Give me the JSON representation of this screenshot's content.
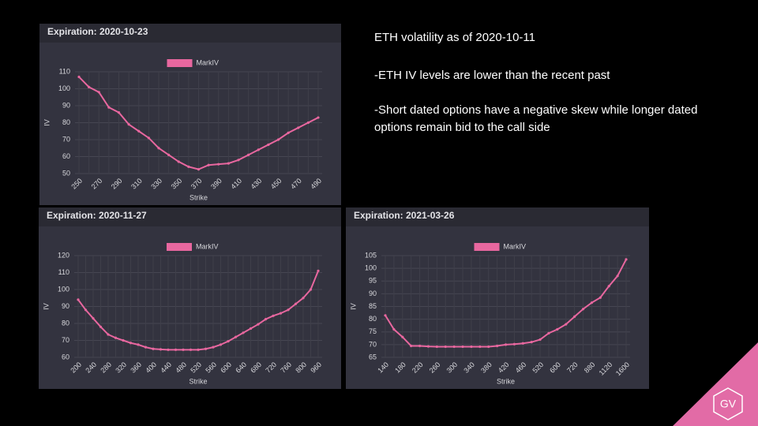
{
  "slide": {
    "heading": "ETH volatility as of 2020-10-11",
    "bullets": [
      "-ETH IV levels are lower than the recent past",
      "-Short dated options have a negative skew while longer dated",
      "options remain bid to the call side"
    ],
    "logo": "GV"
  },
  "chart_data": [
    {
      "type": "line",
      "title": "Expiration: 2020-10-23",
      "x_label": "Strike",
      "y_label": "IV",
      "categories": [
        250,
        null,
        270,
        null,
        290,
        null,
        310,
        null,
        330,
        null,
        350,
        null,
        370,
        null,
        390,
        null,
        410,
        null,
        430,
        null,
        450,
        null,
        470,
        null,
        490
      ],
      "series": [
        {
          "name": "MarkIV",
          "color": "#e8679f",
          "values": [
            107,
            101,
            98,
            89,
            86,
            79,
            75,
            71,
            65,
            61,
            57,
            54,
            52.5,
            55,
            55.5,
            56,
            58,
            61,
            64,
            67,
            70,
            74,
            77,
            80,
            83
          ]
        }
      ],
      "ylim": [
        50,
        110
      ],
      "yticks": [
        50,
        60,
        70,
        80,
        90,
        100,
        110
      ],
      "grid": true
    },
    {
      "type": "line",
      "title": "Expiration: 2020-11-27",
      "x_label": "Strike",
      "y_label": "IV",
      "categories": [
        200,
        null,
        240,
        null,
        280,
        null,
        320,
        null,
        360,
        null,
        400,
        null,
        440,
        null,
        480,
        null,
        520,
        null,
        560,
        null,
        600,
        null,
        640,
        null,
        680,
        null,
        720,
        null,
        760,
        null,
        800,
        null,
        960
      ],
      "series": [
        {
          "name": "MarkIV",
          "color": "#e8679f",
          "values": [
            94,
            88,
            83,
            78,
            73.5,
            71.5,
            70,
            68.5,
            67.5,
            66,
            65,
            64.7,
            64.5,
            64.5,
            64.5,
            64.5,
            64.5,
            65,
            66,
            67.5,
            69.5,
            72,
            74.5,
            77,
            79.5,
            82.5,
            84.5,
            86,
            88,
            91.5,
            95,
            100,
            111
          ]
        }
      ],
      "ylim": [
        60,
        120
      ],
      "yticks": [
        60,
        70,
        80,
        90,
        100,
        110,
        120
      ],
      "grid": true
    },
    {
      "type": "line",
      "title": "Expiration: 2021-03-26",
      "x_label": "Strike",
      "y_label": "IV",
      "categories": [
        140,
        null,
        180,
        null,
        220,
        null,
        260,
        null,
        300,
        null,
        340,
        null,
        380,
        null,
        420,
        null,
        460,
        null,
        520,
        null,
        600,
        null,
        720,
        null,
        880,
        null,
        1120,
        null,
        1600
      ],
      "series": [
        {
          "name": "MarkIV",
          "color": "#e8679f",
          "values": [
            81.5,
            76,
            73,
            69.5,
            69.5,
            69.3,
            69.2,
            69.2,
            69.2,
            69.2,
            69.2,
            69.2,
            69.2,
            69.5,
            70,
            70.2,
            70.5,
            71,
            72,
            74.5,
            76,
            78,
            81,
            84,
            86.5,
            88.5,
            93,
            97,
            103.5
          ]
        }
      ],
      "ylim": [
        65,
        105
      ],
      "yticks": [
        65,
        70,
        75,
        80,
        85,
        90,
        95,
        100,
        105
      ],
      "grid": true
    }
  ]
}
